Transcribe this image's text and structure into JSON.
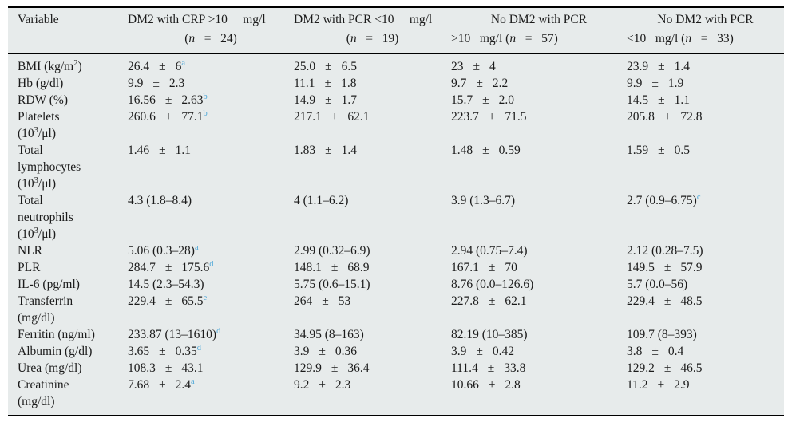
{
  "table": {
    "pm_symbol": "±",
    "colors": {
      "panel_background": "#e7ebeb",
      "text": "#1b1b1b",
      "footnote_marker": "#4fa8d8",
      "rule": "#000000"
    },
    "columns": [
      {
        "id": "variable",
        "lines": [
          "Variable"
        ]
      },
      {
        "id": "dm2-crp-gt10",
        "lines": [
          "DM2 with CRP >10     mg/l",
          "(*n*   =   24)"
        ]
      },
      {
        "id": "dm2-pcr-lt10",
        "lines": [
          "DM2 with PCR <10     mg/l",
          "(*n*   =   19)"
        ]
      },
      {
        "id": "no-dm2-pcr-gt10",
        "lines": [
          "No DM2 with PCR",
          ">10   mg/l (*n*   =   57)"
        ]
      },
      {
        "id": "no-dm2-pcr-lt10",
        "lines": [
          "No DM2 with PCR",
          "<10   mg/l (*n*   =   33)"
        ]
      }
    ],
    "rows": [
      {
        "id": "bmi",
        "label_lines": [
          "BMI (kg/m^2^)"
        ],
        "cells": [
          "26.4 ± 6~a~",
          "25.0 ± 6.5",
          "23 ± 4",
          "23.9 ± 1.4"
        ]
      },
      {
        "id": "hb",
        "label_lines": [
          "Hb (g/dl)"
        ],
        "cells": [
          "9.9 ± 2.3",
          "11.1 ± 1.8",
          "9.7 ± 2.2",
          "9.9 ± 1.9"
        ]
      },
      {
        "id": "rdw",
        "label_lines": [
          "RDW (%)"
        ],
        "cells": [
          "16.56 ± 2.63~b~",
          "14.9 ± 1.7",
          "15.7 ± 2.0",
          "14.5 ± 1.1"
        ]
      },
      {
        "id": "platelets",
        "label_lines": [
          "Platelets",
          "(10^3^/μl)"
        ],
        "cells": [
          "260.6 ± 77.1~b~",
          "217.1 ± 62.1",
          "223.7 ± 71.5",
          "205.8 ± 72.8"
        ]
      },
      {
        "id": "total-lymphocytes",
        "label_lines": [
          "Total",
          "lymphocytes",
          "(10^3^/μl)"
        ],
        "cells": [
          "1.46 ± 1.1",
          "1.83 ± 1.4",
          "1.48 ± 0.59",
          "1.59 ± 0.5"
        ]
      },
      {
        "id": "total-neutrophils",
        "label_lines": [
          "Total",
          "neutrophils",
          "(10^3^/μl)"
        ],
        "cells": [
          "4.3 (1.8–8.4)",
          "4 (1.1–6.2)",
          "3.9 (1.3–6.7)",
          "2.7 (0.9–6.75)~c~"
        ]
      },
      {
        "id": "nlr",
        "label_lines": [
          "NLR"
        ],
        "cells": [
          "5.06 (0.3–28)~a~",
          "2.99 (0.32–6.9)",
          "2.94 (0.75–7.4)",
          "2.12 (0.28–7.5)"
        ]
      },
      {
        "id": "plr",
        "label_lines": [
          "PLR"
        ],
        "cells": [
          "284.7 ± 175.6~d~",
          "148.1 ± 68.9",
          "167.1 ± 70",
          "149.5 ± 57.9"
        ]
      },
      {
        "id": "il-6",
        "label_lines": [
          "IL-6 (pg/ml)"
        ],
        "cells": [
          "14.5 (2.3–54.3)",
          "5.75 (0.6–15.1)",
          "8.76 (0.0–126.6)",
          "5.7 (0.0–56)"
        ]
      },
      {
        "id": "transferrin",
        "label_lines": [
          "Transferrin",
          "(mg/dl)"
        ],
        "cells": [
          "229.4 ± 65.5~e~",
          "264 ± 53",
          "227.8 ± 62.1",
          "229.4 ± 48.5"
        ]
      },
      {
        "id": "ferritin",
        "label_lines": [
          "Ferritin (ng/ml)"
        ],
        "cells": [
          "233.87 (13–1610)~d~",
          "34.95 (8–163)",
          "82.19 (10–385)",
          "109.7 (8–393)"
        ]
      },
      {
        "id": "albumin",
        "label_lines": [
          "Albumin (g/dl)"
        ],
        "cells": [
          "3.65 ± 0.35~d~",
          "3.9 ± 0.36",
          "3.9 ± 0.42",
          "3.8 ± 0.4"
        ]
      },
      {
        "id": "urea",
        "label_lines": [
          "Urea (mg/dl)"
        ],
        "cells": [
          "108.3 ± 43.1",
          "129.9 ± 36.4",
          "111.4 ± 33.8",
          "129.2 ± 46.5"
        ]
      },
      {
        "id": "creatinine",
        "label_lines": [
          "Creatinine",
          "(mg/dl)"
        ],
        "cells": [
          "7.68 ± 2.4~a~",
          "9.2 ± 2.3",
          "10.66 ± 2.8",
          "11.2 ± 2.9"
        ]
      }
    ]
  }
}
